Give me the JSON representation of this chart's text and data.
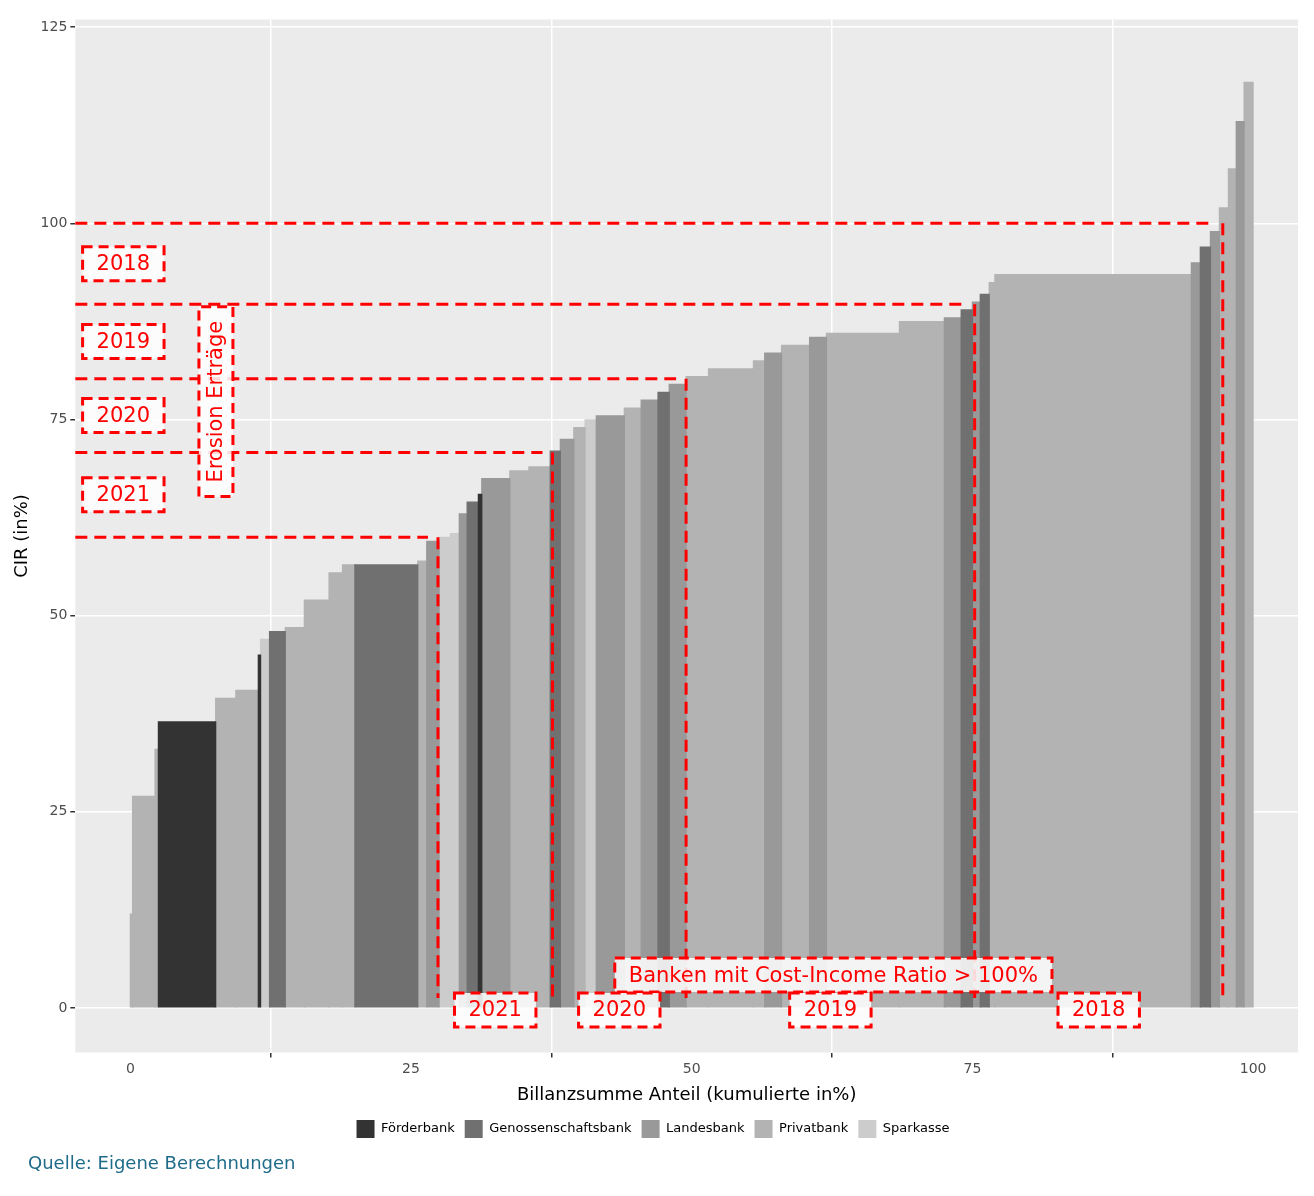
{
  "chart_data": {
    "type": "histogram",
    "xlabel": "Billanzsumme Anteil (kumulierte in%)",
    "ylabel": "CIR (in%)",
    "bins": [
      0,
      0.2,
      2.2,
      2.5,
      7.6,
      9.4,
      11.4,
      11.6,
      12.4,
      13.8,
      15.5,
      17.7,
      18.9,
      20,
      25.6,
      26.4,
      27.5,
      28.5,
      29.3,
      30,
      31,
      31.3,
      33.8,
      35.5,
      37.4,
      38.3,
      39.5,
      40.5,
      41.5,
      44,
      45.5,
      47,
      48,
      49.5,
      51.5,
      55.5,
      56.5,
      58,
      60.5,
      62,
      68.5,
      72.5,
      74,
      75,
      75.7,
      76.5,
      77,
      94.5,
      95.3,
      96.2,
      97,
      97.8,
      98.5,
      99.2,
      100
    ],
    "series": [
      {
        "name": "Förderbank",
        "color": "#333333",
        "values": [
          null,
          null,
          null,
          36.5,
          null,
          null,
          45,
          null,
          null,
          null,
          null,
          null,
          null,
          null,
          null,
          null,
          null,
          null,
          null,
          null,
          65.5,
          null,
          null,
          null,
          null,
          null,
          null,
          null,
          null,
          null,
          null,
          null,
          null,
          null,
          null,
          null,
          null,
          null,
          null,
          null,
          null,
          null,
          null,
          null,
          null,
          null,
          null,
          null,
          null,
          null,
          null,
          null,
          null,
          null
        ]
      },
      {
        "name": "Genossenschaftsbank",
        "color": "#707070",
        "values": [
          null,
          null,
          null,
          null,
          null,
          null,
          null,
          null,
          48,
          null,
          null,
          null,
          null,
          56.5,
          null,
          null,
          null,
          null,
          null,
          64.5,
          null,
          null,
          null,
          null,
          71,
          null,
          null,
          null,
          null,
          null,
          null,
          78.5,
          null,
          null,
          null,
          null,
          null,
          null,
          null,
          null,
          null,
          null,
          89,
          null,
          91,
          null,
          null,
          null,
          97,
          null,
          null,
          null,
          null,
          null
        ]
      },
      {
        "name": "Landesbank",
        "color": "#999999",
        "values": [
          null,
          null,
          null,
          null,
          null,
          null,
          null,
          null,
          null,
          null,
          null,
          null,
          null,
          null,
          null,
          59.5,
          null,
          null,
          63,
          null,
          null,
          67.5,
          null,
          null,
          null,
          72.5,
          null,
          null,
          75.5,
          null,
          77.5,
          null,
          79.5,
          null,
          null,
          null,
          83.5,
          null,
          85.5,
          null,
          null,
          88,
          null,
          90,
          null,
          null,
          null,
          95,
          null,
          99,
          null,
          null,
          113,
          null
        ]
      },
      {
        "name": "Privatbank",
        "color": "#b3b3b3",
        "values": [
          12,
          27,
          33,
          null,
          39.5,
          40.5,
          null,
          null,
          null,
          48.5,
          52,
          55.5,
          56.5,
          null,
          57,
          null,
          null,
          null,
          null,
          null,
          null,
          null,
          68.5,
          69,
          null,
          null,
          74,
          null,
          null,
          76.5,
          null,
          null,
          null,
          80.5,
          81.5,
          82.5,
          null,
          84.5,
          null,
          86,
          87.5,
          null,
          null,
          null,
          null,
          92.5,
          93.5,
          null,
          null,
          null,
          102,
          107,
          null,
          118
        ]
      },
      {
        "name": "Sparkasse",
        "color": "#cccccc",
        "values": [
          null,
          null,
          null,
          null,
          null,
          null,
          null,
          47,
          null,
          null,
          null,
          null,
          null,
          null,
          null,
          null,
          60,
          60.5,
          null,
          null,
          null,
          null,
          null,
          null,
          null,
          null,
          null,
          75,
          null,
          null,
          null,
          null,
          null,
          null,
          null,
          null,
          null,
          null,
          null,
          null,
          null,
          null,
          null,
          null,
          null,
          null,
          null,
          null,
          null,
          null,
          null,
          null,
          null,
          null
        ]
      }
    ],
    "xlim": [
      -4.9,
      104
    ],
    "ylim": [
      -5.7,
      126
    ],
    "xticks": [
      0,
      25,
      50,
      75,
      100
    ],
    "yticks": [
      0,
      25,
      50,
      75,
      100,
      125
    ],
    "grid": true,
    "legend": "bottom",
    "ref_lines": [
      {
        "axis": "y",
        "value": 100,
        "color": "#ff0000",
        "line_style": "dashed"
      },
      {
        "axis": "y",
        "value": 89.7,
        "color": "#ff0000",
        "line_style": "dashed"
      },
      {
        "axis": "y",
        "value": 80.2,
        "color": "#ff0000",
        "line_style": "dashed"
      },
      {
        "axis": "y",
        "value": 70.8,
        "color": "#ff0000",
        "line_style": "dashed"
      },
      {
        "axis": "y",
        "value": 60,
        "color": "#ff0000",
        "line_style": "dashed"
      },
      {
        "axis": "x",
        "value": 97.3,
        "color": "#ff0000",
        "line_style": "dashed"
      },
      {
        "axis": "x",
        "value": 75.2,
        "color": "#ff0000",
        "line_style": "dashed"
      },
      {
        "axis": "x",
        "value": 49.5,
        "color": "#ff0000",
        "line_style": "dashed"
      },
      {
        "axis": "x",
        "value": 37.6,
        "color": "#ff0000",
        "line_style": "dashed"
      },
      {
        "axis": "x",
        "value": 27.4,
        "color": "#ff0000",
        "line_style": "dashed"
      }
    ],
    "annotations": [
      "2018",
      "2019",
      "2020",
      "2021",
      "Erosion Erträge",
      "Banken mit Cost-Income Ratio > 100%",
      "2021",
      "2020",
      "2019",
      "2018",
      "Quelle: Eigene Berechnungen"
    ]
  }
}
